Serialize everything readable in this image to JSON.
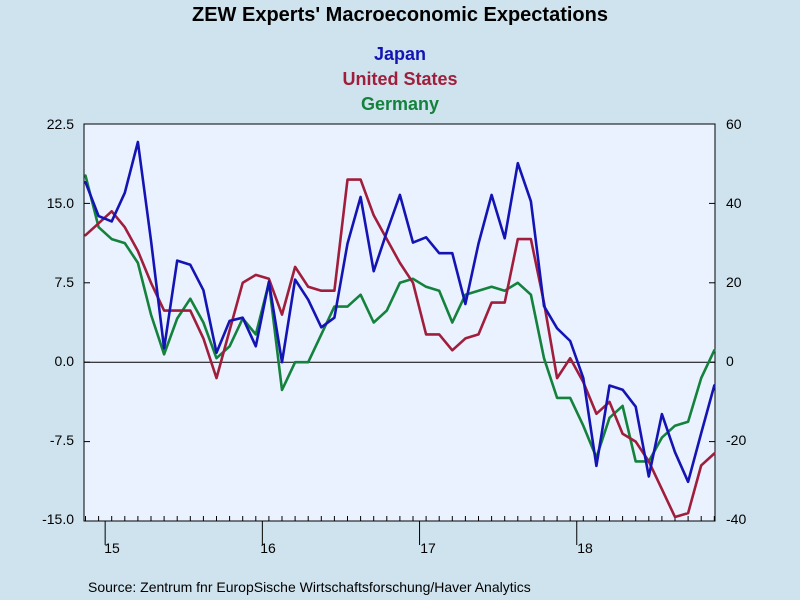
{
  "chart_data": {
    "type": "line",
    "title": "ZEW Experts' Macroeconomic Expectations",
    "source": "Source:  Zentrum fnr EuropSische Wirtschaftsforschung/Haver Analytics",
    "x_start": "2014-11",
    "x_tick_labels": [
      "15",
      "16",
      "17",
      "18"
    ],
    "y_left": {
      "min": -15.0,
      "max": 22.5,
      "ticks": [
        "22.5",
        "15.0",
        "7.5",
        "0.0",
        "-7.5",
        "-15.0"
      ]
    },
    "y_right": {
      "min": -40,
      "max": 60,
      "ticks": [
        "60",
        "40",
        "20",
        "0",
        "-20",
        "-40"
      ]
    },
    "series": [
      {
        "name": "Japan",
        "axis": "left",
        "color": "#1414b4",
        "values": [
          17.0,
          13.8,
          13.3,
          16.0,
          20.8,
          11.5,
          1.3,
          9.6,
          9.2,
          6.8,
          0.9,
          3.9,
          4.2,
          1.5,
          7.6,
          0.0,
          7.8,
          5.9,
          3.3,
          4.2,
          11.2,
          15.6,
          8.6,
          12.3,
          15.8,
          11.3,
          11.8,
          10.3,
          10.3,
          5.5,
          11.2,
          15.8,
          11.7,
          18.8,
          15.2,
          5.3,
          3.2,
          2.0,
          -1.5,
          -9.8,
          -2.2,
          -2.6,
          -4.2,
          -10.8,
          -4.9,
          -8.5,
          -11.3,
          -6.7,
          -2.2
        ]
      },
      {
        "name": "United States",
        "axis": "right",
        "color": "#a01e3c",
        "values": [
          32,
          35,
          38,
          34,
          28,
          20,
          13,
          13,
          13,
          6,
          -4,
          8,
          20,
          22,
          21,
          12,
          24,
          19,
          18,
          18,
          46,
          46,
          37,
          31,
          25,
          20,
          7,
          7,
          3,
          6,
          7,
          15,
          15,
          31,
          31,
          15,
          -4,
          1,
          -5,
          -13,
          -10,
          -18,
          -20,
          -25,
          -32,
          -39,
          -38,
          -26,
          -23
        ]
      },
      {
        "name": "Germany",
        "axis": "right",
        "color": "#14823c",
        "values": [
          47,
          34,
          31,
          30,
          25,
          12,
          2,
          11,
          16,
          10,
          1,
          4,
          11,
          7,
          20,
          -7,
          0,
          0,
          7,
          14,
          14,
          17,
          10,
          13,
          20,
          21,
          19,
          18,
          10,
          17,
          18,
          19,
          18,
          20,
          17,
          1,
          -9,
          -9,
          -16,
          -24,
          -14,
          -11,
          -25,
          -25,
          -19,
          -16,
          -15,
          -4,
          3
        ]
      }
    ],
    "zero_line": true,
    "grid": false
  }
}
